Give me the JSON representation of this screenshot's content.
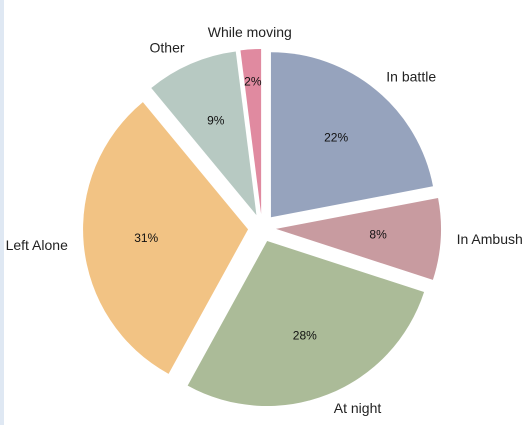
{
  "chart_data": {
    "type": "pie",
    "categories": [
      "In battle",
      "In Ambush",
      "At night",
      "Left Alone",
      "Other",
      "While moving"
    ],
    "values": [
      22,
      8,
      28,
      31,
      9,
      2
    ],
    "value_labels": [
      "22%",
      "8%",
      "28%",
      "31%",
      "9%",
      "2%"
    ],
    "colors": [
      "#96a3bd",
      "#c89ba0",
      "#abbb98",
      "#f2c384",
      "#b7c9c2",
      "#e08aa0"
    ]
  }
}
